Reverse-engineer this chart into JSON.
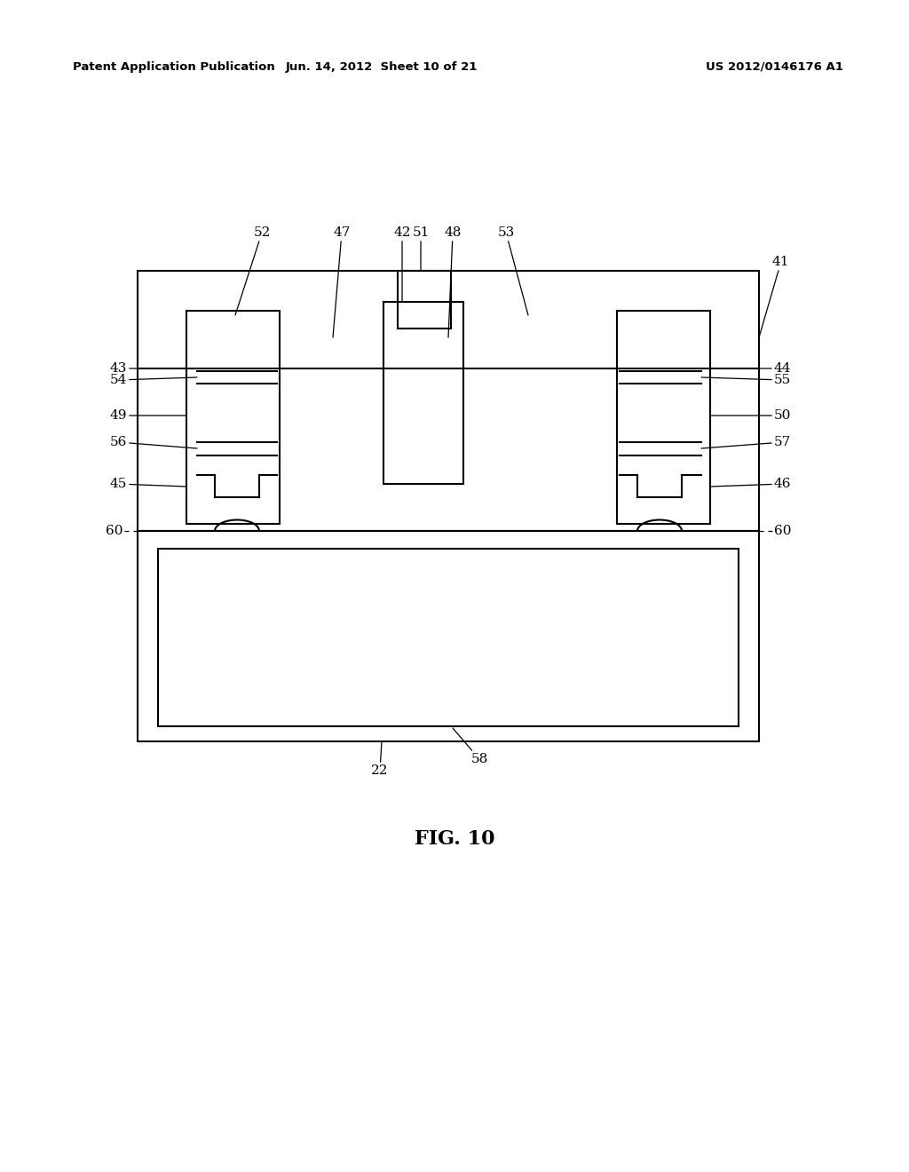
{
  "bg_color": "#ffffff",
  "line_color": "#000000",
  "header_left": "Patent Application Publication",
  "header_mid": "Jun. 14, 2012  Sheet 10 of 21",
  "header_right": "US 2012/0146176 A1",
  "figure_label": "FIG. 10"
}
